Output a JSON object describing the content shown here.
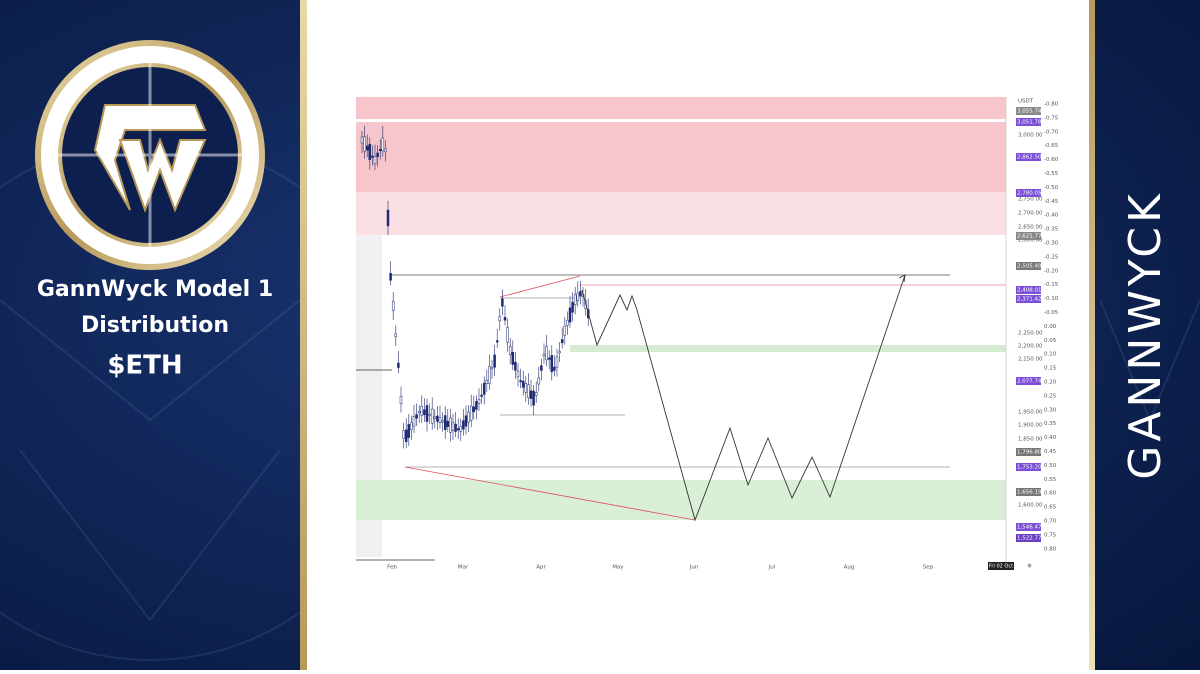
{
  "left_panel": {
    "title": "GannWyck Model 1",
    "subtitle": "Distribution",
    "ticker": "$ETH"
  },
  "right_panel": {
    "brand": "GANNWYCK"
  },
  "chart": {
    "currency": "USDT",
    "date_badge": "Fri 02 Oct",
    "price_ticks": [
      "3,000.00",
      "2,750.00",
      "2,700.00",
      "2,650.00",
      "2,600.00",
      "2,250.00",
      "2,200.00",
      "2,150.00",
      "1,950.00",
      "1,900.00",
      "1,850.00",
      "1,600.00"
    ],
    "price_badges": [
      "3,055.74",
      "3,051.78",
      "2,862.50",
      "2,780.05",
      "2,621.77",
      "2,505.49",
      "2,408.01",
      "2,371.42",
      "2,077.74",
      "1,796.80",
      "1,753.20",
      "1,656.19",
      "1,546.47",
      "1,522.77"
    ],
    "ratio_ticks": [
      "-0.80",
      "-0.75",
      "-0.70",
      "-0.65",
      "-0.60",
      "-0.55",
      "-0.50",
      "-0.45",
      "-0.40",
      "-0.35",
      "-0.30",
      "-0.25",
      "-0.20",
      "-0.15",
      "-0.10",
      "-0.05",
      "0.00",
      "0.05",
      "0.10",
      "0.15",
      "0.20",
      "0.25",
      "0.30",
      "0.35",
      "0.40",
      "0.45",
      "0.50",
      "0.55",
      "0.60",
      "0.65",
      "0.70",
      "0.75",
      "0.80"
    ],
    "months": [
      "Feb",
      "Mar",
      "Apr",
      "May",
      "Jun",
      "Jul",
      "Aug",
      "Sep"
    ]
  }
}
